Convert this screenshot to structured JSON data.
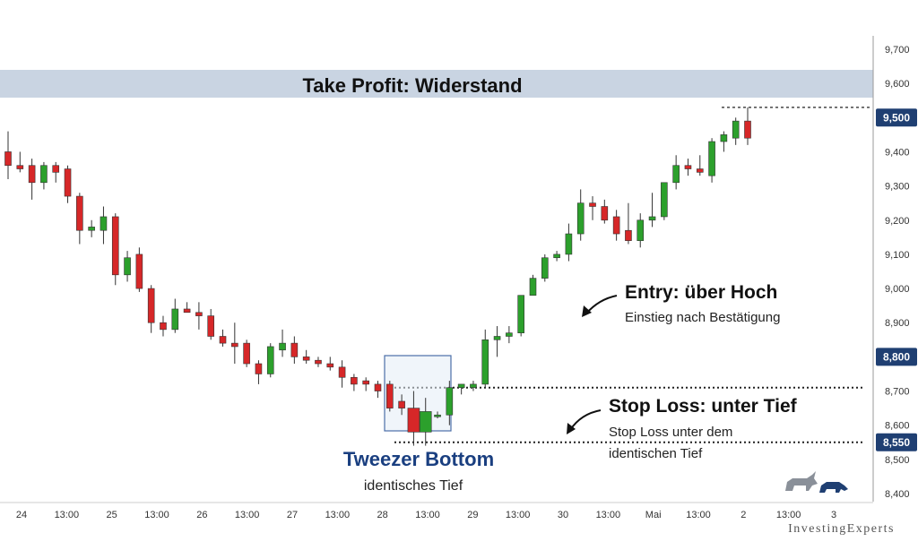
{
  "chart_data": {
    "type": "candlestick",
    "y_ticks": [
      "9,700",
      "9,600",
      "9,500",
      "9,400",
      "9,300",
      "9,200",
      "9,100",
      "9,000",
      "8,900",
      "8,800",
      "8,700",
      "8,600",
      "8,550",
      "8,500",
      "8,400"
    ],
    "ylim": [
      8375,
      9750
    ],
    "x_ticks": [
      "24",
      "13:00",
      "25",
      "13:00",
      "26",
      "13:00",
      "27",
      "13:00",
      "28",
      "13:00",
      "29",
      "13:00",
      "30",
      "13:00",
      "Mai",
      "13:00",
      "2",
      "13:00",
      "3"
    ],
    "candles": [
      {
        "o": 9400,
        "h": 9460,
        "l": 9320,
        "c": 9360
      },
      {
        "o": 9360,
        "h": 9400,
        "l": 9340,
        "c": 9350
      },
      {
        "o": 9360,
        "h": 9380,
        "l": 9260,
        "c": 9310
      },
      {
        "o": 9310,
        "h": 9370,
        "l": 9290,
        "c": 9360
      },
      {
        "o": 9360,
        "h": 9370,
        "l": 9310,
        "c": 9340
      },
      {
        "o": 9350,
        "h": 9360,
        "l": 9250,
        "c": 9270
      },
      {
        "o": 9270,
        "h": 9280,
        "l": 9130,
        "c": 9170
      },
      {
        "o": 9170,
        "h": 9200,
        "l": 9150,
        "c": 9180
      },
      {
        "o": 9170,
        "h": 9240,
        "l": 9130,
        "c": 9210
      },
      {
        "o": 9210,
        "h": 9220,
        "l": 9010,
        "c": 9040
      },
      {
        "o": 9040,
        "h": 9110,
        "l": 9020,
        "c": 9090
      },
      {
        "o": 9100,
        "h": 9120,
        "l": 8990,
        "c": 9000
      },
      {
        "o": 9000,
        "h": 9010,
        "l": 8870,
        "c": 8900
      },
      {
        "o": 8900,
        "h": 8920,
        "l": 8860,
        "c": 8880
      },
      {
        "o": 8880,
        "h": 8970,
        "l": 8870,
        "c": 8940
      },
      {
        "o": 8940,
        "h": 8960,
        "l": 8930,
        "c": 8930
      },
      {
        "o": 8930,
        "h": 8960,
        "l": 8880,
        "c": 8920
      },
      {
        "o": 8920,
        "h": 8940,
        "l": 8850,
        "c": 8860
      },
      {
        "o": 8860,
        "h": 8880,
        "l": 8830,
        "c": 8840
      },
      {
        "o": 8840,
        "h": 8900,
        "l": 8780,
        "c": 8830
      },
      {
        "o": 8840,
        "h": 8850,
        "l": 8770,
        "c": 8780
      },
      {
        "o": 8780,
        "h": 8790,
        "l": 8720,
        "c": 8750
      },
      {
        "o": 8750,
        "h": 8840,
        "l": 8740,
        "c": 8830
      },
      {
        "o": 8820,
        "h": 8880,
        "l": 8800,
        "c": 8840
      },
      {
        "o": 8840,
        "h": 8860,
        "l": 8780,
        "c": 8800
      },
      {
        "o": 8800,
        "h": 8820,
        "l": 8780,
        "c": 8790
      },
      {
        "o": 8790,
        "h": 8800,
        "l": 8770,
        "c": 8780
      },
      {
        "o": 8780,
        "h": 8800,
        "l": 8760,
        "c": 8770
      },
      {
        "o": 8770,
        "h": 8790,
        "l": 8710,
        "c": 8740
      },
      {
        "o": 8740,
        "h": 8750,
        "l": 8700,
        "c": 8720
      },
      {
        "o": 8730,
        "h": 8740,
        "l": 8700,
        "c": 8720
      },
      {
        "o": 8720,
        "h": 8730,
        "l": 8680,
        "c": 8700
      },
      {
        "o": 8720,
        "h": 8730,
        "l": 8640,
        "c": 8650
      },
      {
        "o": 8670,
        "h": 8690,
        "l": 8630,
        "c": 8650
      },
      {
        "o": 8650,
        "h": 8700,
        "l": 8540,
        "c": 8580
      },
      {
        "o": 8580,
        "h": 8680,
        "l": 8540,
        "c": 8640
      },
      {
        "o": 8630,
        "h": 8640,
        "l": 8620,
        "c": 8630
      },
      {
        "o": 8630,
        "h": 8730,
        "l": 8600,
        "c": 8710
      },
      {
        "o": 8710,
        "h": 8720,
        "l": 8690,
        "c": 8720
      },
      {
        "o": 8710,
        "h": 8730,
        "l": 8700,
        "c": 8720
      },
      {
        "o": 8720,
        "h": 8880,
        "l": 8710,
        "c": 8850
      },
      {
        "o": 8850,
        "h": 8890,
        "l": 8800,
        "c": 8860
      },
      {
        "o": 8860,
        "h": 8890,
        "l": 8840,
        "c": 8870
      },
      {
        "o": 8870,
        "h": 8980,
        "l": 8860,
        "c": 8980
      },
      {
        "o": 8980,
        "h": 9040,
        "l": 8980,
        "c": 9030
      },
      {
        "o": 9030,
        "h": 9100,
        "l": 9020,
        "c": 9090
      },
      {
        "o": 9090,
        "h": 9110,
        "l": 9080,
        "c": 9100
      },
      {
        "o": 9100,
        "h": 9190,
        "l": 9080,
        "c": 9160
      },
      {
        "o": 9160,
        "h": 9290,
        "l": 9140,
        "c": 9250
      },
      {
        "o": 9250,
        "h": 9270,
        "l": 9200,
        "c": 9240
      },
      {
        "o": 9240,
        "h": 9260,
        "l": 9190,
        "c": 9200
      },
      {
        "o": 9210,
        "h": 9230,
        "l": 9140,
        "c": 9160
      },
      {
        "o": 9170,
        "h": 9250,
        "l": 9130,
        "c": 9140
      },
      {
        "o": 9140,
        "h": 9220,
        "l": 9120,
        "c": 9200
      },
      {
        "o": 9200,
        "h": 9280,
        "l": 9180,
        "c": 9210
      },
      {
        "o": 9210,
        "h": 9310,
        "l": 9200,
        "c": 9310
      },
      {
        "o": 9310,
        "h": 9390,
        "l": 9290,
        "c": 9360
      },
      {
        "o": 9360,
        "h": 9380,
        "l": 9330,
        "c": 9350
      },
      {
        "o": 9350,
        "h": 9390,
        "l": 9330,
        "c": 9340
      },
      {
        "o": 9330,
        "h": 9440,
        "l": 9310,
        "c": 9430
      },
      {
        "o": 9430,
        "h": 9460,
        "l": 9400,
        "c": 9450
      },
      {
        "o": 9440,
        "h": 9500,
        "l": 9420,
        "c": 9490
      },
      {
        "o": 9490,
        "h": 9530,
        "l": 9420,
        "c": 9440
      }
    ],
    "levels": [
      {
        "name": "take-profit",
        "value": 9530
      },
      {
        "name": "entry",
        "value": 8710
      },
      {
        "name": "stop-loss",
        "value": 8550
      }
    ],
    "badges": [
      {
        "label": "9,500",
        "value": 9500
      },
      {
        "label": "8,800",
        "value": 8800
      },
      {
        "label": "8,550",
        "value": 8550
      }
    ],
    "colors": {
      "up": "#2ca02c",
      "down": "#d62728",
      "badge": "#1f3f72",
      "band": "#c9d4e2",
      "box": "#4b6ea8"
    }
  },
  "annotations": {
    "take_profit": "Take Profit: Widerstand",
    "entry_title": "Entry: über Hoch",
    "entry_sub": "Einstieg nach Bestätigung",
    "stop_title": "Stop Loss: unter Tief",
    "stop_sub1": "Stop Loss unter dem",
    "stop_sub2": "identischen Tief",
    "tweezer_title": "Tweezer Bottom",
    "tweezer_sub": "identisches Tief"
  },
  "brand": "InvestingExperts"
}
